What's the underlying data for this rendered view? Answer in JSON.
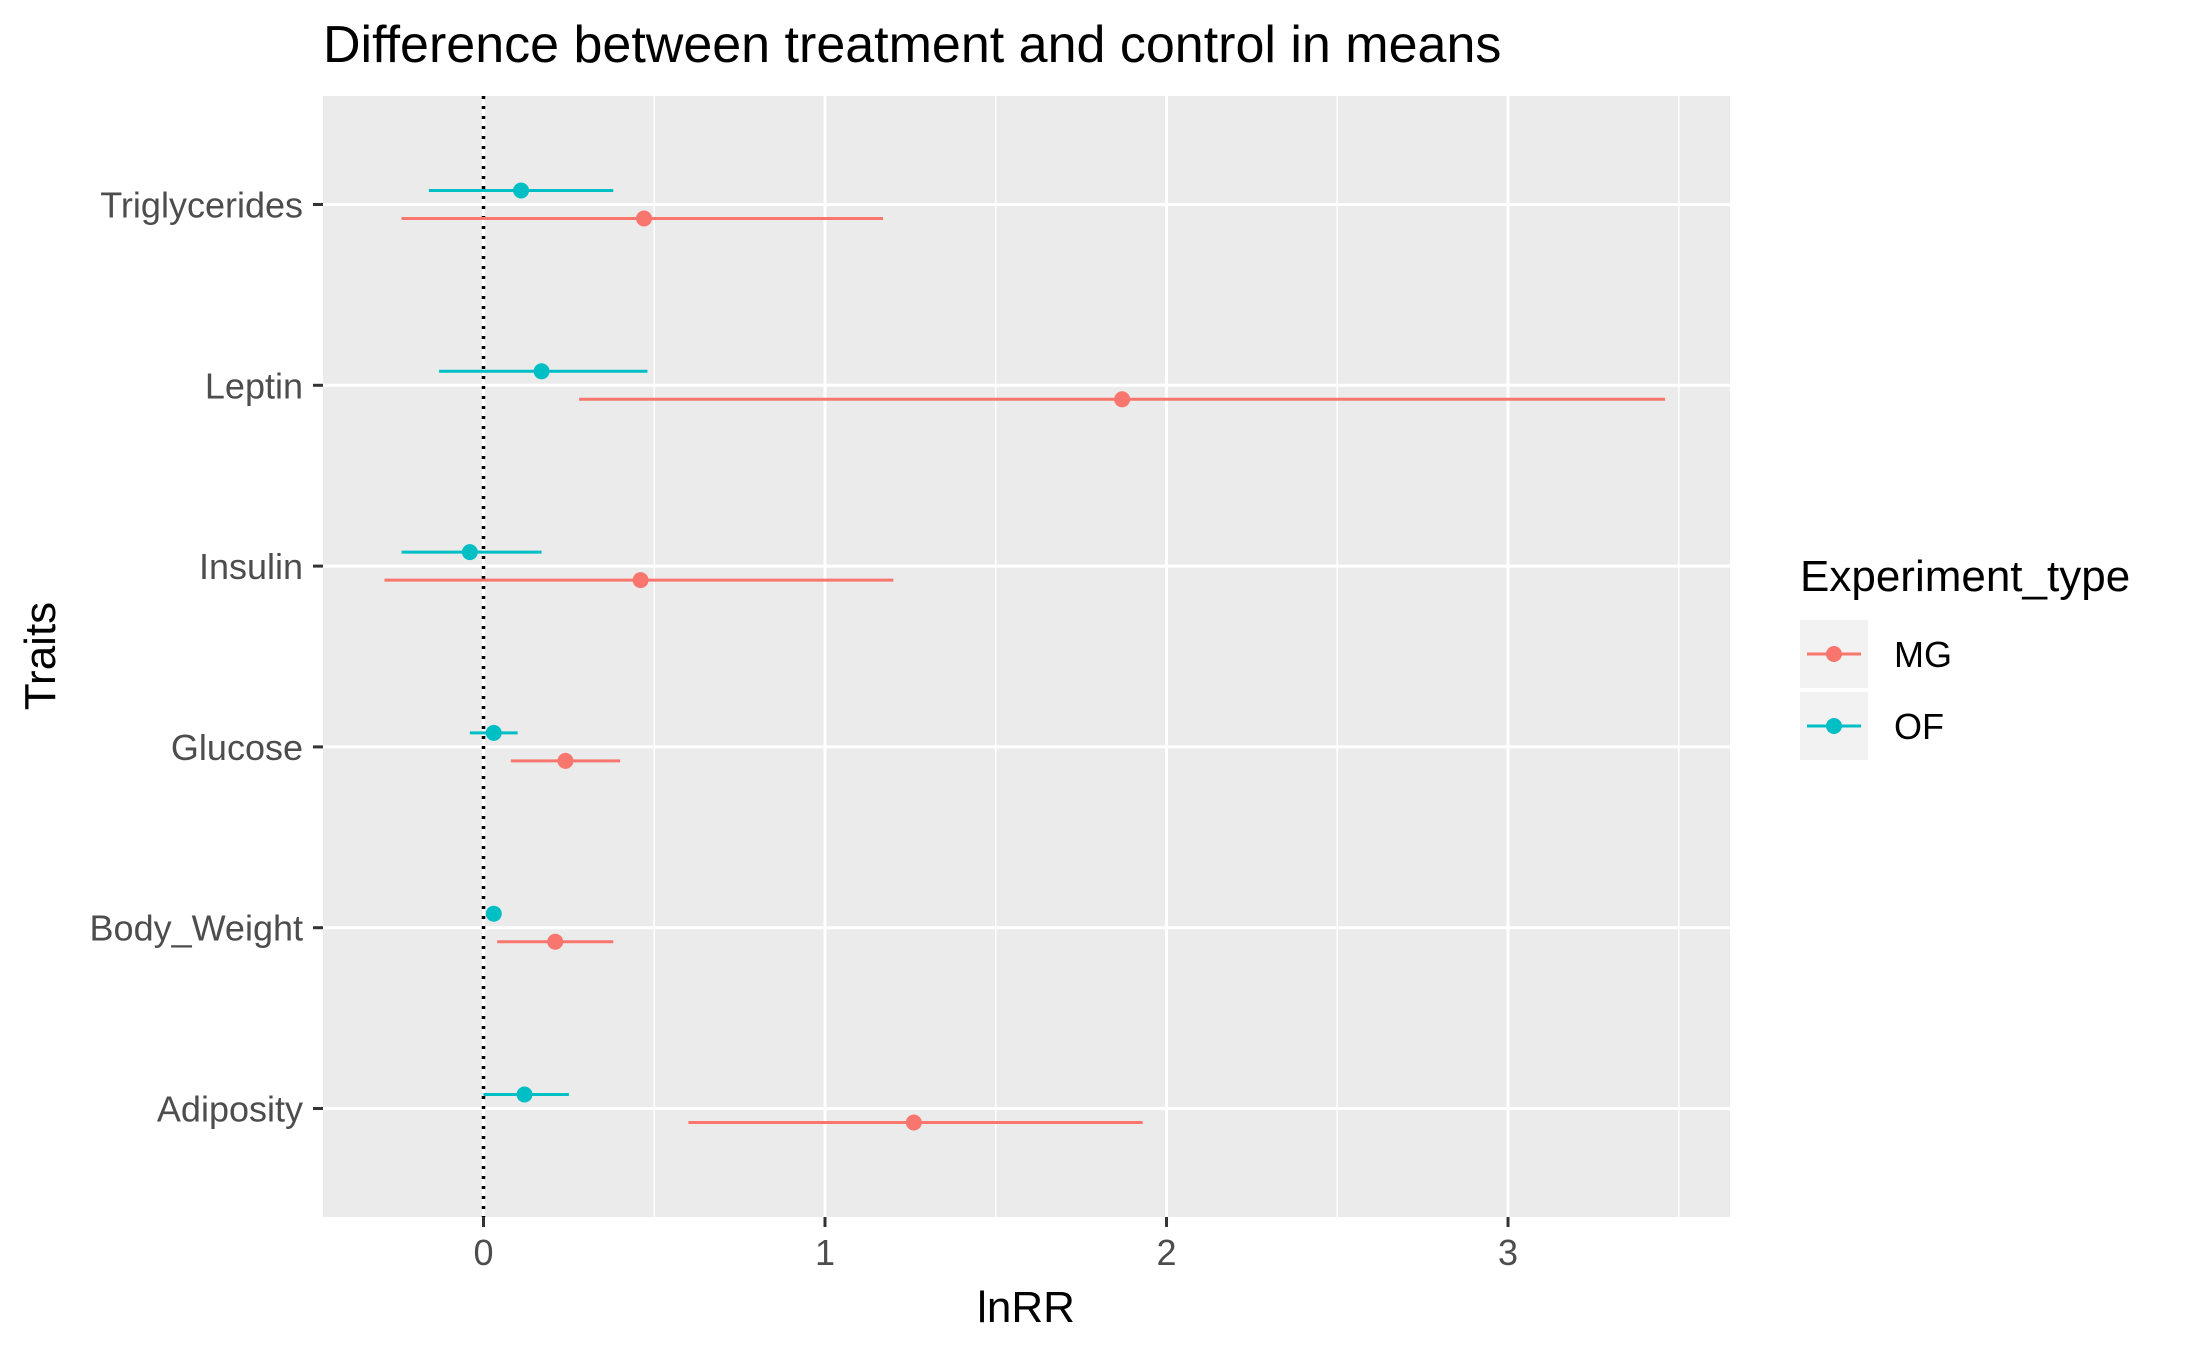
{
  "chart_data": {
    "type": "scatter",
    "title": "Difference between treatment and control in means",
    "xlabel": "lnRR",
    "ylabel": "Traits",
    "xlim": [
      -0.47,
      3.65
    ],
    "x_ticks": [
      0,
      1,
      2,
      3
    ],
    "x_tick_labels": [
      "0",
      "1",
      "2",
      "3"
    ],
    "categories": [
      "Triglycerides",
      "Leptin",
      "Insulin",
      "Glucose",
      "Body_Weight",
      "Adiposity"
    ],
    "reference_line": {
      "x": 0,
      "style": "dotted"
    },
    "grid": true,
    "legend": {
      "title": "Experiment_type",
      "position": "right"
    },
    "series": [
      {
        "name": "MG",
        "color": "#F8766D",
        "points": [
          {
            "trait": "Triglycerides",
            "estimate": 0.47,
            "lower": -0.24,
            "upper": 1.17
          },
          {
            "trait": "Leptin",
            "estimate": 1.87,
            "lower": 0.28,
            "upper": 3.46
          },
          {
            "trait": "Insulin",
            "estimate": 0.46,
            "lower": -0.29,
            "upper": 1.2
          },
          {
            "trait": "Glucose",
            "estimate": 0.24,
            "lower": 0.08,
            "upper": 0.4
          },
          {
            "trait": "Body_Weight",
            "estimate": 0.21,
            "lower": 0.04,
            "upper": 0.38
          },
          {
            "trait": "Adiposity",
            "estimate": 1.26,
            "lower": 0.6,
            "upper": 1.93
          }
        ]
      },
      {
        "name": "OF",
        "color": "#00BFC4",
        "points": [
          {
            "trait": "Triglycerides",
            "estimate": 0.11,
            "lower": -0.16,
            "upper": 0.38
          },
          {
            "trait": "Leptin",
            "estimate": 0.17,
            "lower": -0.13,
            "upper": 0.48
          },
          {
            "trait": "Insulin",
            "estimate": -0.04,
            "lower": -0.24,
            "upper": 0.17
          },
          {
            "trait": "Glucose",
            "estimate": 0.03,
            "lower": -0.04,
            "upper": 0.1
          },
          {
            "trait": "Body_Weight",
            "estimate": 0.03,
            "lower": 0.02,
            "upper": 0.04
          },
          {
            "trait": "Adiposity",
            "estimate": 0.12,
            "lower": 0.0,
            "upper": 0.25
          }
        ]
      }
    ]
  }
}
